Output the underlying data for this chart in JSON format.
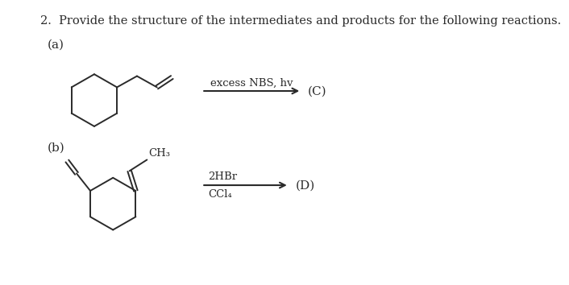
{
  "title": "2.  Provide the structure of the intermediates and products for the following reactions.",
  "title_fontsize": 10.5,
  "background_color": "#ffffff",
  "text_color": "#2a2a2a",
  "label_a": "(a)",
  "label_b": "(b)",
  "reaction_a_label": "excess NBS, hv",
  "reaction_a_product": "(C)",
  "reaction_b_line1": "2HBr",
  "reaction_b_line2": "CCl₄",
  "reaction_b_product": "(D)"
}
